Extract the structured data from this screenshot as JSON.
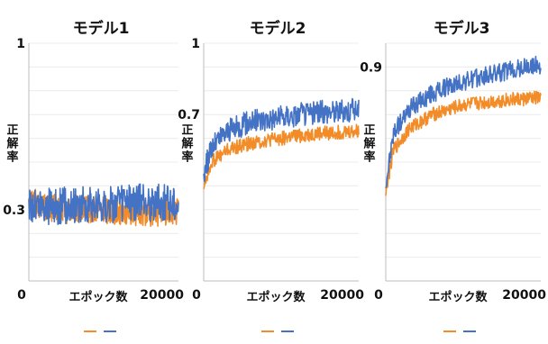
{
  "chart_data": [
    {
      "type": "line",
      "title": "モデル1",
      "ylabel": "正解率",
      "xlabel": "エポック数",
      "xlim": [
        0,
        20000
      ],
      "ylim": [
        0,
        1
      ],
      "x_tick_labels": [
        "0",
        "20000"
      ],
      "y_tick_labels": [
        "1",
        "0.3"
      ],
      "series": [
        {
          "color": "#f28c28",
          "values": [
            [
              0,
              0.36
            ],
            [
              2000,
              0.31
            ],
            [
              5000,
              0.3
            ],
            [
              10000,
              0.3
            ],
            [
              15000,
              0.29
            ],
            [
              20000,
              0.29
            ]
          ],
          "band": 0.06
        },
        {
          "color": "#4472c4",
          "values": [
            [
              0,
              0.32
            ],
            [
              2000,
              0.31
            ],
            [
              5000,
              0.32
            ],
            [
              10000,
              0.32
            ],
            [
              15000,
              0.33
            ],
            [
              20000,
              0.33
            ]
          ],
          "band": 0.08
        }
      ]
    },
    {
      "type": "line",
      "title": "モデル2",
      "ylabel": "正解率",
      "xlabel": "エポック数",
      "xlim": [
        0,
        20000
      ],
      "ylim": [
        0,
        1
      ],
      "x_tick_labels": [
        "0",
        "20000"
      ],
      "y_tick_labels": [
        "1",
        "0.7"
      ],
      "series": [
        {
          "color": "#f28c28",
          "values": [
            [
              0,
              0.4
            ],
            [
              1000,
              0.5
            ],
            [
              3000,
              0.55
            ],
            [
              6000,
              0.58
            ],
            [
              10000,
              0.6
            ],
            [
              15000,
              0.62
            ],
            [
              20000,
              0.63
            ]
          ],
          "band": 0.03
        },
        {
          "color": "#4472c4",
          "values": [
            [
              0,
              0.45
            ],
            [
              1000,
              0.56
            ],
            [
              3000,
              0.63
            ],
            [
              6000,
              0.67
            ],
            [
              10000,
              0.69
            ],
            [
              15000,
              0.71
            ],
            [
              20000,
              0.72
            ]
          ],
          "band": 0.05
        }
      ]
    },
    {
      "type": "line",
      "title": "モデル3",
      "ylabel": "正解率",
      "xlabel": "エポック数",
      "xlim": [
        0,
        20000
      ],
      "ylim": [
        0,
        1
      ],
      "x_tick_labels": [
        "0",
        "20000"
      ],
      "y_tick_labels": [
        "0.9"
      ],
      "series": [
        {
          "color": "#f28c28",
          "values": [
            [
              0,
              0.38
            ],
            [
              1000,
              0.55
            ],
            [
              3000,
              0.64
            ],
            [
              6000,
              0.7
            ],
            [
              10000,
              0.74
            ],
            [
              15000,
              0.76
            ],
            [
              20000,
              0.77
            ]
          ],
          "band": 0.03
        },
        {
          "color": "#4472c4",
          "values": [
            [
              0,
              0.4
            ],
            [
              1000,
              0.62
            ],
            [
              3000,
              0.72
            ],
            [
              6000,
              0.79
            ],
            [
              10000,
              0.84
            ],
            [
              15000,
              0.88
            ],
            [
              20000,
              0.91
            ]
          ],
          "band": 0.04
        }
      ]
    }
  ]
}
